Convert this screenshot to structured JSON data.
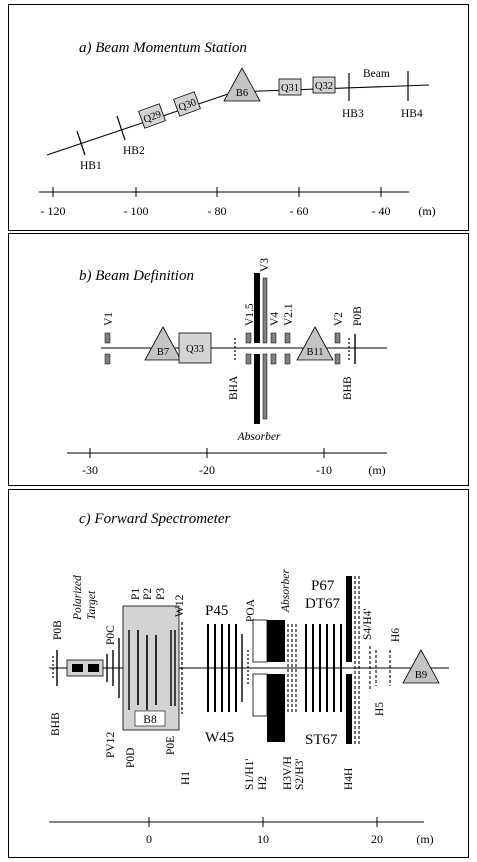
{
  "panel_a": {
    "title": "a) Beam Momentum Station",
    "elements": [
      "Q29",
      "Q30",
      "B6",
      "Q31",
      "Q32"
    ],
    "beam_label": "Beam",
    "hodoscopes": [
      "HB1",
      "HB2",
      "HB3",
      "HB4"
    ],
    "axis": {
      "ticks": [
        "- 120",
        "- 100",
        "- 80",
        "- 60",
        "- 40"
      ],
      "unit": "(m)"
    }
  },
  "panel_b": {
    "title": "b) Beam Definition",
    "vetoes": [
      "V1",
      "V1.5",
      "V3",
      "V4",
      "V2.1",
      "V2",
      "P0B"
    ],
    "magnets": [
      "B7",
      "Q33",
      "B11"
    ],
    "labels": [
      "BHA",
      "BHB",
      "Absorber"
    ],
    "axis": {
      "ticks": [
        "-30",
        "-20",
        "-10"
      ],
      "unit": "(m)"
    }
  },
  "panel_c": {
    "title": "c) Forward Spectrometer",
    "target_label_1": "Polarized",
    "target_label_2": "Target",
    "top_labels": [
      "P0B",
      "P0C",
      "P1",
      "P2",
      "P3",
      "W12",
      "P45",
      "POA",
      "Absorber",
      "P67",
      "DT67",
      "S4/H4'",
      "H6"
    ],
    "bottom_labels": [
      "BHB",
      "PV12",
      "P0D",
      "P0E",
      "H1",
      "W45",
      "S1/H1'",
      "H2",
      "H3V/H",
      "S2/H3'",
      "ST67",
      "H4H",
      "H5"
    ],
    "magnets": [
      "B8",
      "B9"
    ],
    "axis": {
      "ticks": [
        "0",
        "10",
        "20"
      ],
      "unit": "(m)"
    }
  }
}
